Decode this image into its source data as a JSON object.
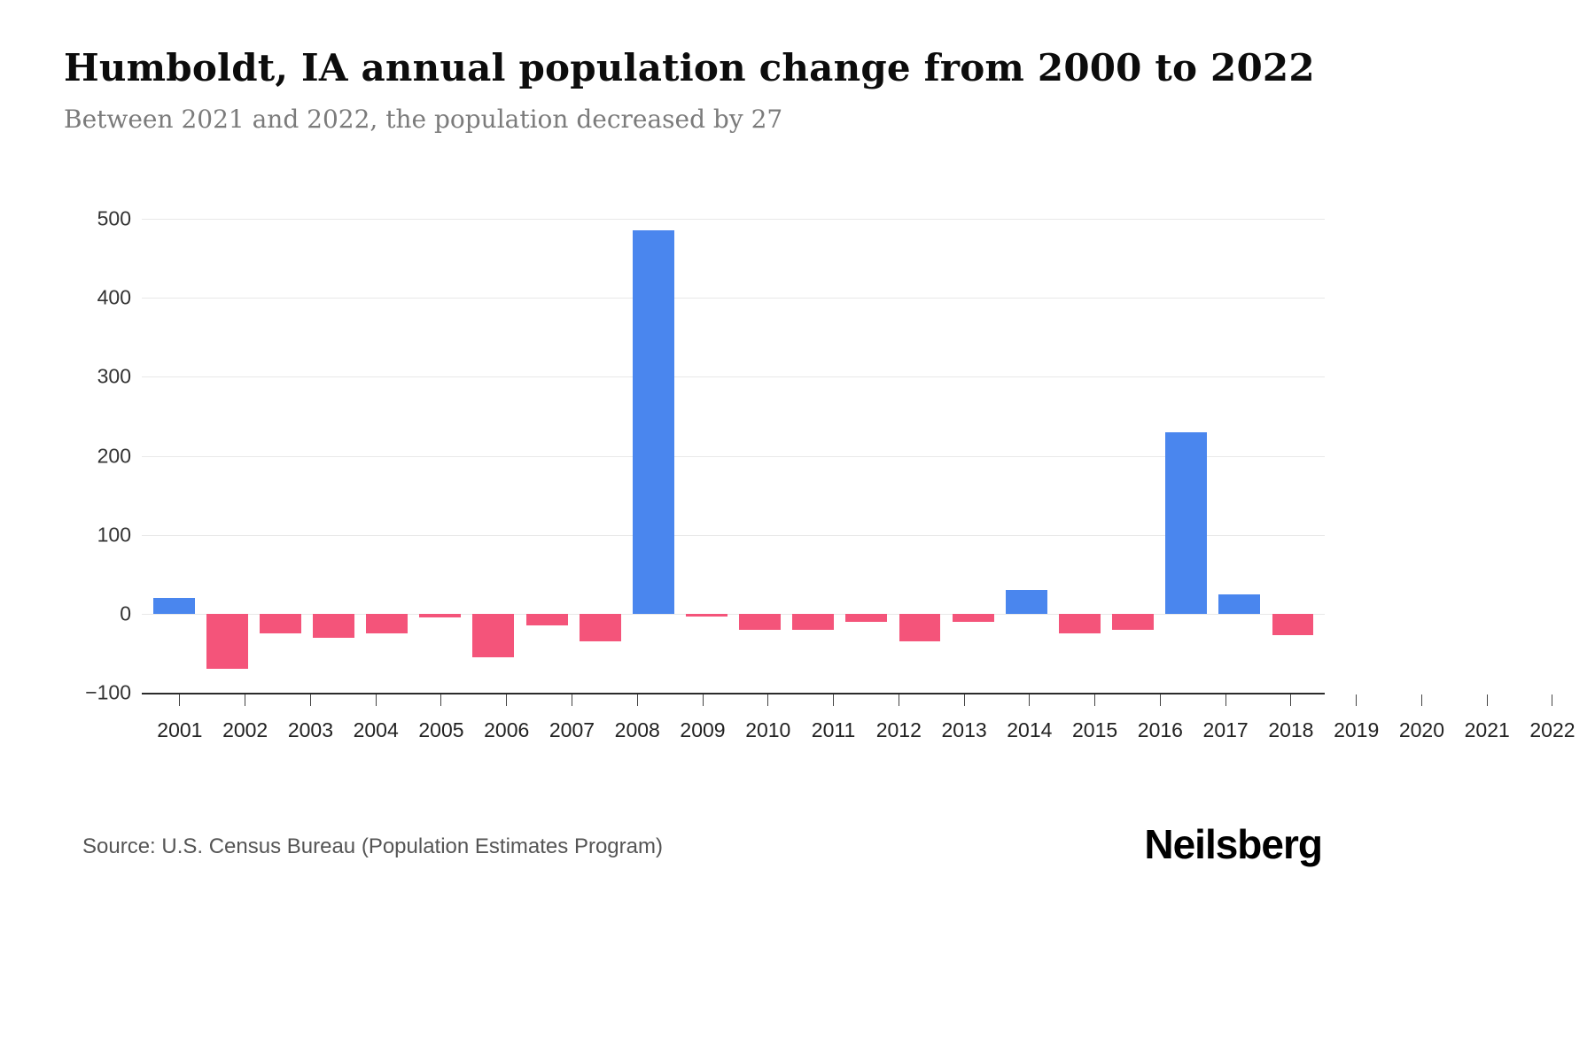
{
  "header": {
    "title": "Humboldt, IA annual population change from 2000 to 2022",
    "subtitle": "Between 2021 and 2022, the population decreased by 27"
  },
  "footer": {
    "source": "Source: U.S. Census Bureau (Population Estimates Program)",
    "brand": "Neilsberg"
  },
  "chart_data": {
    "type": "bar",
    "title": "Humboldt, IA annual population change from 2000 to 2022",
    "xlabel": "",
    "ylabel": "",
    "categories": [
      "2001",
      "2002",
      "2003",
      "2004",
      "2005",
      "2006",
      "2007",
      "2008",
      "2009",
      "2010",
      "2011",
      "2012",
      "2013",
      "2014",
      "2015",
      "2016",
      "2017",
      "2018",
      "2019",
      "2020",
      "2021",
      "2022"
    ],
    "values": [
      20,
      -70,
      -25,
      -30,
      -25,
      -5,
      -55,
      -15,
      -35,
      485,
      -3,
      -20,
      -20,
      -10,
      -35,
      -10,
      30,
      -25,
      -20,
      230,
      25,
      -27
    ],
    "ylim": [
      -100,
      500
    ],
    "yticks": [
      500,
      400,
      300,
      200,
      100,
      0,
      -100
    ],
    "positive_color": "#4a86ee",
    "negative_color": "#f4547a",
    "grid": true,
    "legend": false
  }
}
